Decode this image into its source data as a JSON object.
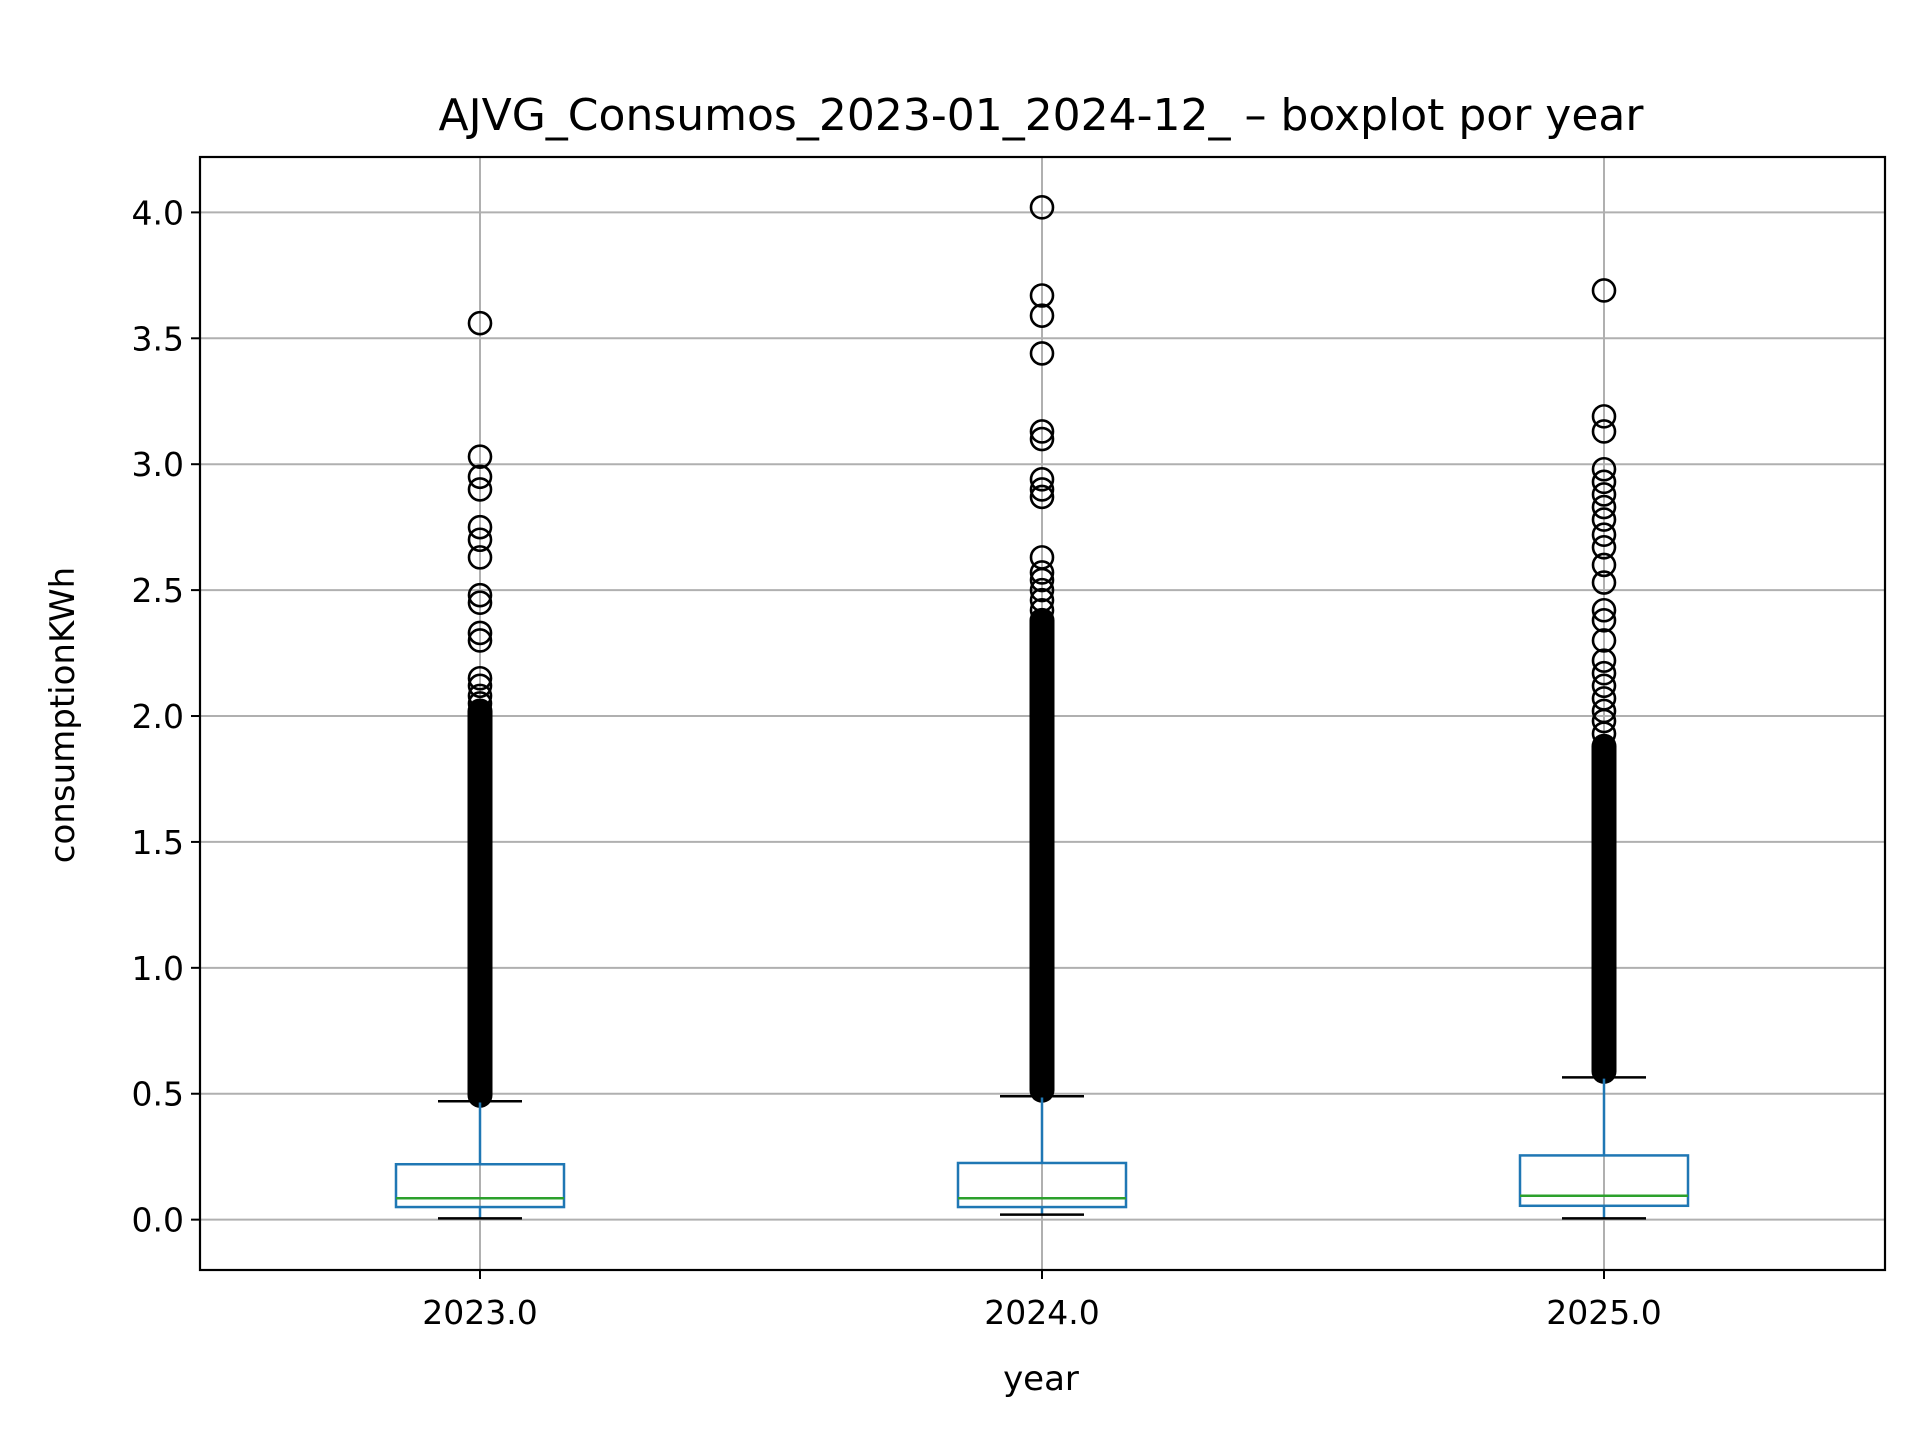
{
  "chart_data": {
    "type": "boxplot",
    "title": "AJVG_Consumos_2023-01_2024-12_ – boxplot por year",
    "xlabel": "year",
    "ylabel": "consumptionKWh",
    "categories": [
      "2023.0",
      "2024.0",
      "2025.0"
    ],
    "ylim": [
      -0.2,
      4.22
    ],
    "yticks": [
      "0.0",
      "0.5",
      "1.0",
      "1.5",
      "2.0",
      "2.5",
      "3.0",
      "3.5",
      "4.0"
    ],
    "grid": true,
    "legend": "none",
    "colors": {
      "box": "#1f77b4",
      "median": "#2ca02c",
      "whisker_cap": "#000000",
      "flier": "#000000",
      "grid": "#b0b0b0"
    },
    "boxes": [
      {
        "category": "2023.0",
        "whisker_low": 0.005,
        "q1": 0.05,
        "median": 0.085,
        "q3": 0.22,
        "whisker_high": 0.47,
        "fliers_continuous": [
          0.47,
          2.02
        ],
        "fliers": [
          2.05,
          2.08,
          2.12,
          2.15,
          2.3,
          2.33,
          2.45,
          2.48,
          2.63,
          2.7,
          2.75,
          2.9,
          2.95,
          3.03,
          3.56
        ]
      },
      {
        "category": "2024.0",
        "whisker_low": 0.02,
        "q1": 0.05,
        "median": 0.085,
        "q3": 0.225,
        "whisker_high": 0.49,
        "fliers_continuous": [
          0.49,
          2.38
        ],
        "fliers": [
          2.42,
          2.46,
          2.5,
          2.54,
          2.57,
          2.63,
          2.87,
          2.9,
          2.94,
          3.1,
          3.13,
          3.44,
          3.59,
          3.67,
          4.02
        ]
      },
      {
        "category": "2025.0",
        "whisker_low": 0.005,
        "q1": 0.055,
        "median": 0.095,
        "q3": 0.255,
        "whisker_high": 0.565,
        "fliers_continuous": [
          0.565,
          1.88
        ],
        "fliers": [
          1.93,
          1.98,
          2.02,
          2.07,
          2.12,
          2.17,
          2.22,
          2.3,
          2.38,
          2.42,
          2.53,
          2.6,
          2.67,
          2.72,
          2.78,
          2.83,
          2.88,
          2.93,
          2.98,
          3.13,
          3.19,
          3.69
        ]
      }
    ]
  }
}
